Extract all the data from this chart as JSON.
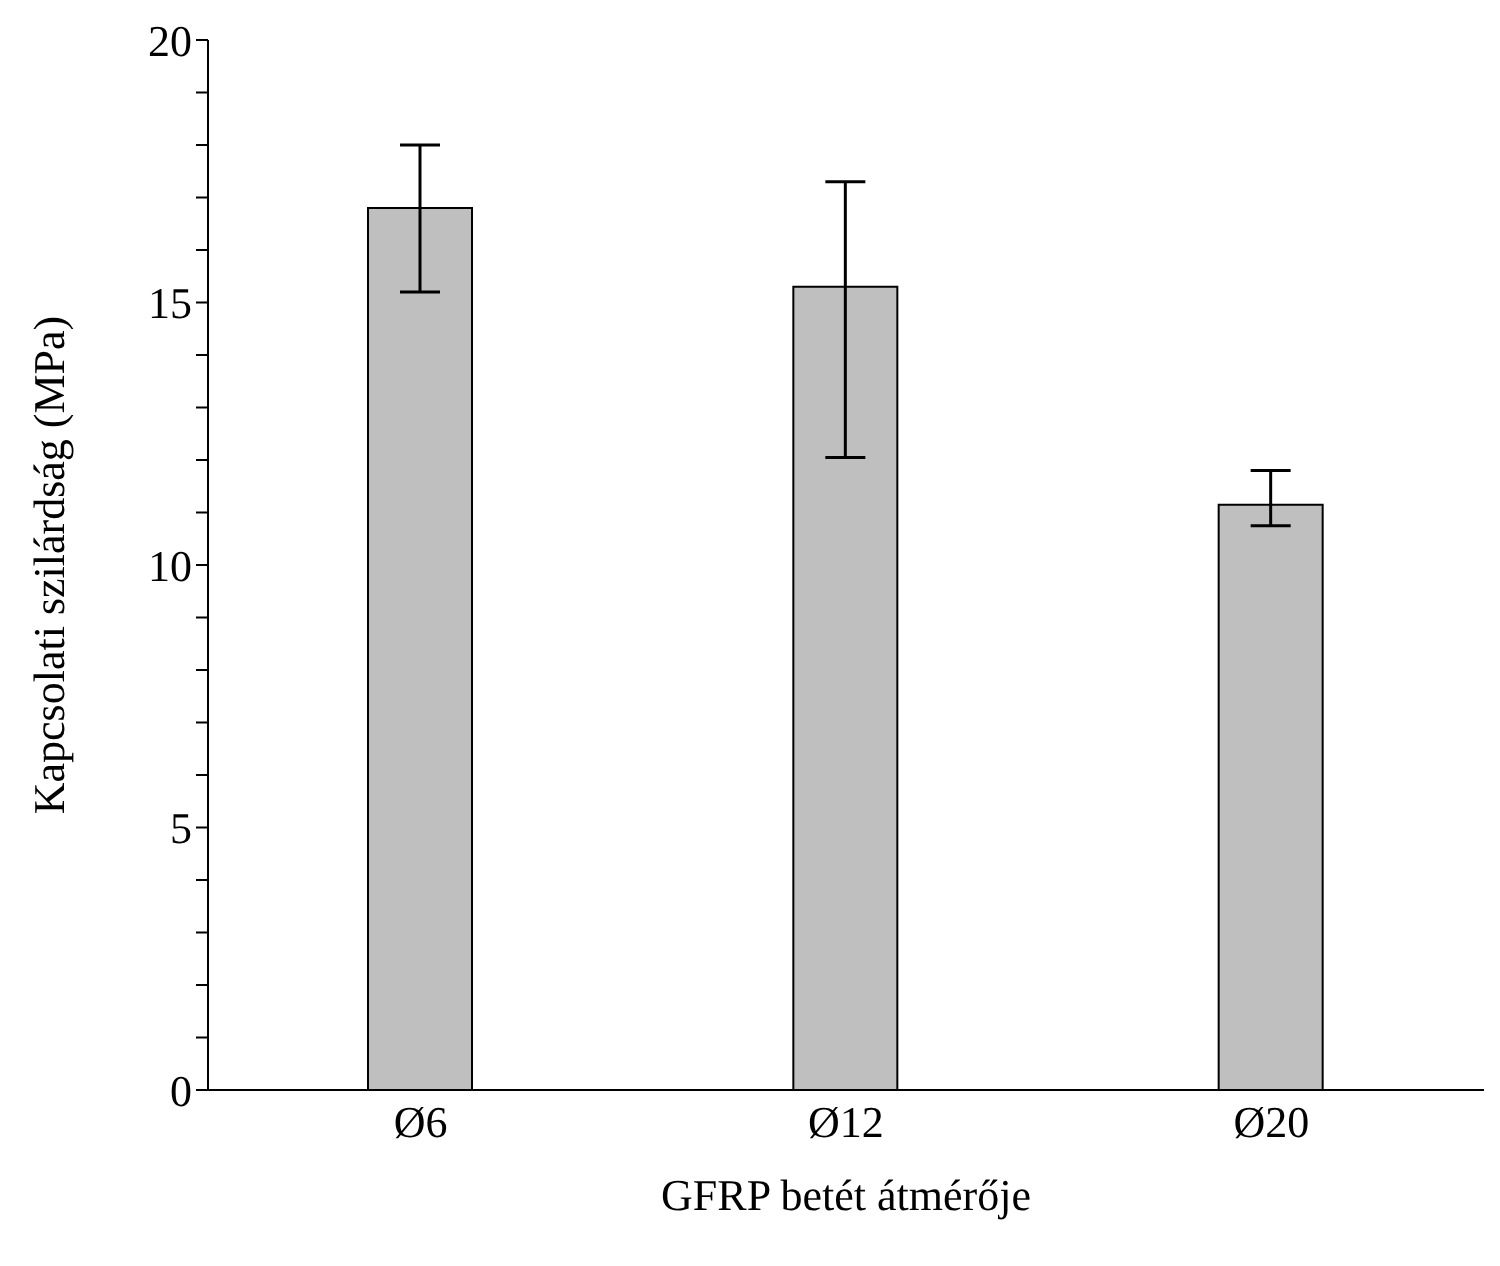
{
  "chart_data": {
    "type": "bar",
    "xlabel": "GFRP betét átmérője",
    "ylabel": "Kapcsolati szilárdság  (MPa)",
    "categories": [
      "Ø6",
      "Ø12",
      "Ø20"
    ],
    "values": [
      16.8,
      15.3,
      11.15
    ],
    "errors": [
      [
        15.2,
        18.0
      ],
      [
        12.05,
        17.3
      ],
      [
        10.75,
        11.8
      ]
    ],
    "color": "#bfbfbf",
    "ylim": [
      0,
      20
    ],
    "yticks": [
      0,
      {
        "value": 1,
        "label": null
      },
      {
        "value": 2,
        "label": null
      },
      {
        "value": 3,
        "label": null
      },
      {
        "value": 4,
        "label": null
      },
      5,
      {
        "value": 6,
        "label": null
      },
      {
        "value": 7,
        "label": null
      },
      {
        "value": 8,
        "label": null
      },
      {
        "value": 9,
        "label": null
      },
      10,
      {
        "value": 11,
        "label": null
      },
      {
        "value": 12,
        "label": null
      },
      {
        "value": 13,
        "label": null
      },
      {
        "value": 14,
        "label": null
      },
      15,
      {
        "value": 16,
        "label": null
      },
      {
        "value": 17,
        "label": null
      },
      {
        "value": 18,
        "label": null
      },
      {
        "value": 19,
        "label": null
      },
      20
    ],
    "grid": false,
    "legend": false
  }
}
